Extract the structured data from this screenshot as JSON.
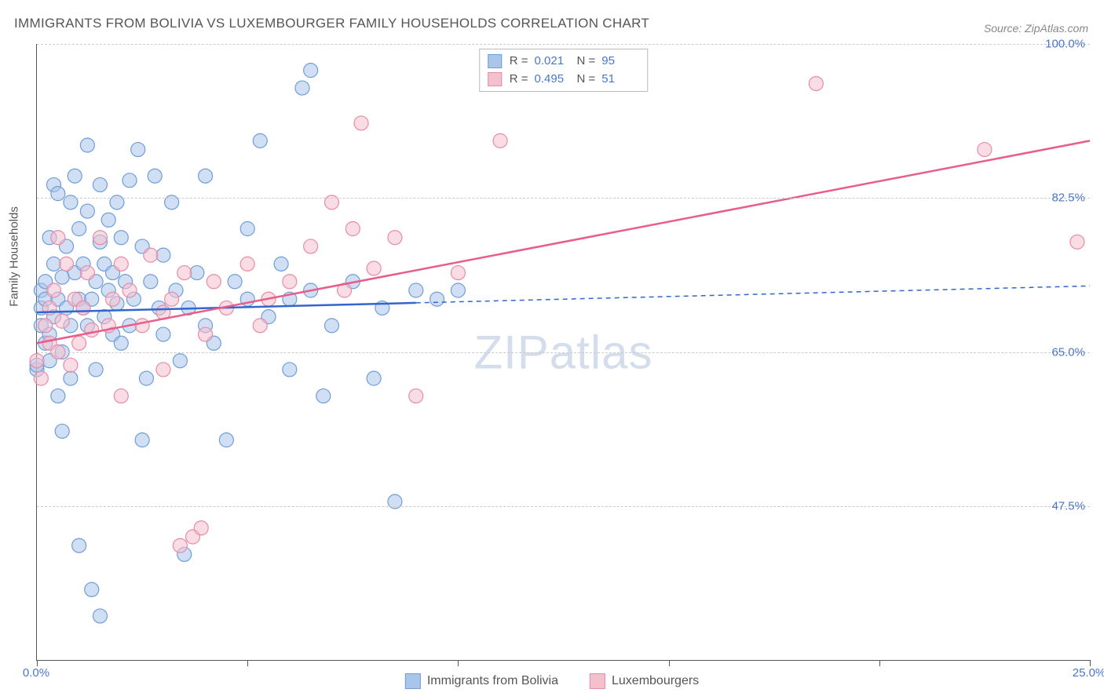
{
  "chart": {
    "title": "IMMIGRANTS FROM BOLIVIA VS LUXEMBOURGER FAMILY HOUSEHOLDS CORRELATION CHART",
    "source": "Source: ZipAtlas.com",
    "watermark": "ZIPatlas",
    "y_axis_label": "Family Households",
    "type": "scatter",
    "xlim": [
      0,
      25
    ],
    "ylim": [
      30,
      100
    ],
    "x_ticks": [
      0,
      25
    ],
    "x_tick_labels": [
      "0.0%",
      "25.0%"
    ],
    "x_minor_ticks": [
      5,
      10,
      15,
      20
    ],
    "y_gridlines": [
      47.5,
      65.0,
      82.5,
      100.0
    ],
    "y_tick_labels": [
      "47.5%",
      "65.0%",
      "82.5%",
      "100.0%"
    ],
    "colors": {
      "series1_fill": "#a9c5ea",
      "series1_stroke": "#6f9ed9",
      "series2_fill": "#f5c0ce",
      "series2_stroke": "#e88ba6",
      "axis": "#555555",
      "grid": "#cccccc",
      "tick_text": "#4a76cc",
      "trend1": "#3366cc",
      "trend2": "#e85d8a"
    },
    "marker_radius": 9,
    "marker_opacity": 0.55,
    "series": [
      {
        "name": "Immigrants from Bolivia",
        "color_fill": "#a9c5ea",
        "color_stroke": "#6f9ed9",
        "stats": {
          "R": "0.021",
          "N": "95"
        },
        "trend": {
          "x1": 0,
          "y1": 69.5,
          "x2": 25,
          "y2": 72.5,
          "solid_until_x": 9
        },
        "points": [
          [
            0.0,
            63
          ],
          [
            0.0,
            63.5
          ],
          [
            0.1,
            68
          ],
          [
            0.1,
            70
          ],
          [
            0.1,
            72
          ],
          [
            0.2,
            66
          ],
          [
            0.2,
            71
          ],
          [
            0.2,
            73
          ],
          [
            0.3,
            67
          ],
          [
            0.3,
            78
          ],
          [
            0.3,
            64
          ],
          [
            0.4,
            69
          ],
          [
            0.4,
            75
          ],
          [
            0.4,
            84
          ],
          [
            0.5,
            83
          ],
          [
            0.5,
            71
          ],
          [
            0.5,
            60
          ],
          [
            0.6,
            56
          ],
          [
            0.6,
            65
          ],
          [
            0.6,
            73.5
          ],
          [
            0.7,
            70
          ],
          [
            0.7,
            77
          ],
          [
            0.8,
            62
          ],
          [
            0.8,
            82
          ],
          [
            0.8,
            68
          ],
          [
            0.9,
            85
          ],
          [
            0.9,
            74
          ],
          [
            1.0,
            71
          ],
          [
            1.0,
            79
          ],
          [
            1.0,
            43
          ],
          [
            1.1,
            70
          ],
          [
            1.1,
            75
          ],
          [
            1.2,
            81
          ],
          [
            1.2,
            68
          ],
          [
            1.2,
            88.5
          ],
          [
            1.3,
            71
          ],
          [
            1.3,
            38
          ],
          [
            1.4,
            73
          ],
          [
            1.4,
            63
          ],
          [
            1.5,
            77.5
          ],
          [
            1.5,
            84
          ],
          [
            1.5,
            35
          ],
          [
            1.6,
            69
          ],
          [
            1.6,
            75
          ],
          [
            1.7,
            72
          ],
          [
            1.7,
            80
          ],
          [
            1.8,
            67
          ],
          [
            1.8,
            74
          ],
          [
            1.9,
            82
          ],
          [
            1.9,
            70.5
          ],
          [
            2.0,
            66
          ],
          [
            2.0,
            78
          ],
          [
            2.1,
            73
          ],
          [
            2.2,
            84.5
          ],
          [
            2.2,
            68
          ],
          [
            2.3,
            71
          ],
          [
            2.4,
            88
          ],
          [
            2.5,
            77
          ],
          [
            2.5,
            55
          ],
          [
            2.6,
            62
          ],
          [
            2.7,
            73
          ],
          [
            2.8,
            85
          ],
          [
            2.9,
            70
          ],
          [
            3.0,
            67
          ],
          [
            3.0,
            76
          ],
          [
            3.2,
            82
          ],
          [
            3.3,
            72
          ],
          [
            3.4,
            64
          ],
          [
            3.5,
            42
          ],
          [
            3.6,
            70
          ],
          [
            3.8,
            74
          ],
          [
            4.0,
            85
          ],
          [
            4.0,
            68
          ],
          [
            4.2,
            66
          ],
          [
            4.5,
            55
          ],
          [
            4.7,
            73
          ],
          [
            5.0,
            79
          ],
          [
            5.0,
            71
          ],
          [
            5.3,
            89
          ],
          [
            5.5,
            69
          ],
          [
            5.8,
            75
          ],
          [
            6.0,
            71
          ],
          [
            6.0,
            63
          ],
          [
            6.3,
            95
          ],
          [
            6.5,
            72
          ],
          [
            6.5,
            97
          ],
          [
            6.8,
            60
          ],
          [
            7.0,
            68
          ],
          [
            7.5,
            73
          ],
          [
            8.0,
            62
          ],
          [
            8.2,
            70
          ],
          [
            8.5,
            48
          ],
          [
            9.0,
            72
          ],
          [
            9.5,
            71
          ],
          [
            10.0,
            72
          ]
        ]
      },
      {
        "name": "Luxembourgers",
        "color_fill": "#f5c0ce",
        "color_stroke": "#e88ba6",
        "stats": {
          "R": "0.495",
          "N": "51"
        },
        "trend": {
          "x1": 0,
          "y1": 66,
          "x2": 25,
          "y2": 89,
          "solid_until_x": 25
        },
        "points": [
          [
            0.0,
            64
          ],
          [
            0.1,
            62
          ],
          [
            0.2,
            68
          ],
          [
            0.3,
            70
          ],
          [
            0.3,
            66
          ],
          [
            0.4,
            72
          ],
          [
            0.5,
            78
          ],
          [
            0.5,
            65
          ],
          [
            0.6,
            68.5
          ],
          [
            0.7,
            75
          ],
          [
            0.8,
            63.5
          ],
          [
            0.9,
            71
          ],
          [
            1.0,
            66
          ],
          [
            1.1,
            70
          ],
          [
            1.2,
            74
          ],
          [
            1.3,
            67.5
          ],
          [
            1.5,
            78
          ],
          [
            1.7,
            68
          ],
          [
            1.8,
            71
          ],
          [
            2.0,
            75
          ],
          [
            2.0,
            60
          ],
          [
            2.2,
            72
          ],
          [
            2.5,
            68
          ],
          [
            2.7,
            76
          ],
          [
            3.0,
            69.5
          ],
          [
            3.0,
            63
          ],
          [
            3.2,
            71
          ],
          [
            3.5,
            74
          ],
          [
            3.7,
            44
          ],
          [
            3.9,
            45
          ],
          [
            4.0,
            67
          ],
          [
            4.2,
            73
          ],
          [
            4.5,
            70
          ],
          [
            5.0,
            75
          ],
          [
            5.3,
            68
          ],
          [
            5.5,
            71
          ],
          [
            6.0,
            73
          ],
          [
            6.5,
            77
          ],
          [
            7.0,
            82
          ],
          [
            7.3,
            72
          ],
          [
            7.5,
            79
          ],
          [
            7.7,
            91
          ],
          [
            8.0,
            74.5
          ],
          [
            8.5,
            78
          ],
          [
            9.0,
            60
          ],
          [
            10.0,
            74
          ],
          [
            11.0,
            89
          ],
          [
            18.5,
            95.5
          ],
          [
            22.5,
            88
          ],
          [
            24.7,
            77.5
          ],
          [
            3.4,
            43
          ]
        ]
      }
    ]
  },
  "legend_bottom": {
    "item1": "Immigrants from Bolivia",
    "item2": "Luxembourgers"
  }
}
